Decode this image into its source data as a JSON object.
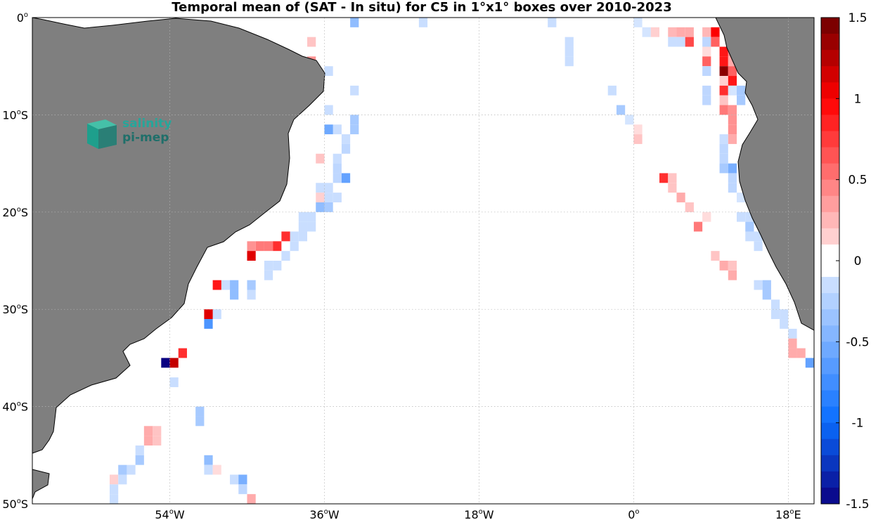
{
  "title": "Temporal mean of (SAT - In situ) for C5 in 1°x1° boxes over 2010-2023",
  "logo": {
    "line1": "salinity",
    "line2": "pi-mep"
  },
  "colors": {
    "land": "#7f7f7f",
    "grid": "#b4b4b4",
    "frame": "#000000"
  },
  "map": {
    "lon_range": [
      -70,
      21
    ],
    "lat_range": [
      -50,
      0
    ],
    "x_ticks": [
      {
        "lon": -54,
        "deg": "54",
        "hemi": "W"
      },
      {
        "lon": -36,
        "deg": "36",
        "hemi": "W"
      },
      {
        "lon": -18,
        "deg": "18",
        "hemi": "W"
      },
      {
        "lon": 0,
        "deg": "0",
        "hemi": ""
      },
      {
        "lon": 18,
        "deg": "18",
        "hemi": "E"
      }
    ],
    "y_ticks": [
      {
        "lat": 0,
        "deg": "0",
        "hemi": ""
      },
      {
        "lat": -10,
        "deg": "10",
        "hemi": "S"
      },
      {
        "lat": -20,
        "deg": "20",
        "hemi": "S"
      },
      {
        "lat": -30,
        "deg": "30",
        "hemi": "S"
      },
      {
        "lat": -40,
        "deg": "40",
        "hemi": "S"
      },
      {
        "lat": -50,
        "deg": "50",
        "hemi": "S"
      }
    ]
  },
  "colorbar": {
    "range": [
      -1.5,
      1.5
    ],
    "steps": 30,
    "ticks": [
      {
        "value": 1.5,
        "label": "1.5"
      },
      {
        "value": 1,
        "label": "1"
      },
      {
        "value": 0.5,
        "label": "0.5"
      },
      {
        "value": 0,
        "label": "0"
      },
      {
        "value": -0.5,
        "label": "-0.5"
      },
      {
        "value": -1,
        "label": "-1"
      },
      {
        "value": -1.5,
        "label": "-1.5"
      }
    ]
  },
  "chart_data": {
    "type": "heatmap",
    "title": "Temporal mean of (SAT - In situ) for C5 in 1°x1° boxes over 2010-2023",
    "x_unit": "longitude (deg)",
    "y_unit": "latitude (deg)",
    "value_range": [
      -1.5,
      1.5
    ],
    "cells": [
      [
        -33,
        -1,
        -0.4
      ],
      [
        -25,
        -1,
        -0.15
      ],
      [
        -10,
        -1,
        -0.15
      ],
      [
        0,
        -1,
        -0.1
      ],
      [
        1,
        -2,
        -0.1
      ],
      [
        2,
        -2,
        0.15
      ],
      [
        4,
        -2,
        0.25
      ],
      [
        5,
        -2,
        0.3
      ],
      [
        6,
        -2,
        0.3
      ],
      [
        8,
        -2,
        0.25
      ],
      [
        9,
        -2,
        1.0
      ],
      [
        -38,
        -3,
        0.2
      ],
      [
        -8,
        -3,
        -0.15
      ],
      [
        4,
        -3,
        -0.15
      ],
      [
        5,
        -3,
        -0.15
      ],
      [
        6,
        -3,
        0.7
      ],
      [
        8,
        -3,
        -0.2
      ],
      [
        9,
        -3,
        0.6
      ],
      [
        -8,
        -4,
        -0.15
      ],
      [
        8,
        -4,
        0.1
      ],
      [
        10,
        -4,
        0.9
      ],
      [
        11,
        -4,
        0.4
      ],
      [
        -8,
        -5,
        -0.15
      ],
      [
        -38,
        -5,
        0.4
      ],
      [
        8,
        -5,
        0.6
      ],
      [
        10,
        -5,
        0.9
      ],
      [
        11,
        -5,
        0.3
      ],
      [
        12,
        -5,
        -0.4
      ],
      [
        -36,
        -6,
        -0.15
      ],
      [
        8,
        -6,
        -0.2
      ],
      [
        10,
        -6,
        1.4
      ],
      [
        11,
        -6,
        0.6
      ],
      [
        10,
        -7,
        0.15
      ],
      [
        11,
        -7,
        0.9
      ],
      [
        -33,
        -8,
        -0.15
      ],
      [
        -3,
        -8,
        -0.15
      ],
      [
        8,
        -8,
        -0.2
      ],
      [
        10,
        -8,
        0.8
      ],
      [
        11,
        -8,
        -0.1
      ],
      [
        12,
        -8,
        -0.3
      ],
      [
        8,
        -9,
        -0.2
      ],
      [
        10,
        -9,
        0.2
      ],
      [
        12,
        -9,
        -0.3
      ],
      [
        -36,
        -10,
        -0.15
      ],
      [
        -2,
        -10,
        -0.3
      ],
      [
        10,
        -10,
        0.5
      ],
      [
        11,
        -10,
        0.4
      ],
      [
        -33,
        -11,
        -0.3
      ],
      [
        -1,
        -11,
        -0.1
      ],
      [
        11,
        -11,
        0.4
      ],
      [
        -33,
        -12,
        -0.3
      ],
      [
        -35,
        -12,
        -0.15
      ],
      [
        -36,
        -12,
        -0.55
      ],
      [
        0,
        -12,
        0.1
      ],
      [
        11,
        -12,
        0.4
      ],
      [
        -34,
        -13,
        -0.15
      ],
      [
        0,
        -13,
        0.2
      ],
      [
        10,
        -13,
        -0.15
      ],
      [
        11,
        -13,
        0.3
      ],
      [
        -34,
        -14,
        -0.2
      ],
      [
        10,
        -14,
        -0.2
      ],
      [
        -37,
        -15,
        0.2
      ],
      [
        -35,
        -15,
        -0.15
      ],
      [
        10,
        -15,
        -0.2
      ],
      [
        -35,
        -16,
        -0.2
      ],
      [
        10,
        -16,
        -0.3
      ],
      [
        11,
        -16,
        -0.5
      ],
      [
        -35,
        -17,
        -0.2
      ],
      [
        -34,
        -17,
        -0.6
      ],
      [
        3,
        -17,
        0.8
      ],
      [
        4,
        -17,
        0.2
      ],
      [
        11,
        -17,
        -0.2
      ],
      [
        -36,
        -18,
        -0.15
      ],
      [
        -37,
        -18,
        -0.15
      ],
      [
        4,
        -18,
        0.2
      ],
      [
        11,
        -18,
        -0.2
      ],
      [
        -36,
        -19,
        -0.15
      ],
      [
        -37,
        -19,
        0.15
      ],
      [
        -35,
        -19,
        -0.15
      ],
      [
        5,
        -19,
        0.3
      ],
      [
        12,
        -19,
        -0.1
      ],
      [
        -36,
        -20,
        -0.3
      ],
      [
        -37,
        -20,
        -0.4
      ],
      [
        6,
        -20,
        0.2
      ],
      [
        -38,
        -21,
        -0.15
      ],
      [
        -39,
        -21,
        -0.15
      ],
      [
        8,
        -21,
        0.1
      ],
      [
        12,
        -21,
        -0.15
      ],
      [
        13,
        -21,
        -0.15
      ],
      [
        -38,
        -22,
        -0.15
      ],
      [
        -39,
        -22,
        -0.15
      ],
      [
        7,
        -22,
        0.5
      ],
      [
        13,
        -22,
        -0.3
      ],
      [
        -39,
        -23,
        -0.15
      ],
      [
        -40,
        -23,
        -0.15
      ],
      [
        -41,
        -23,
        0.8
      ],
      [
        13,
        -23,
        -0.15
      ],
      [
        14,
        -23,
        -0.15
      ],
      [
        -40,
        -24,
        -0.15
      ],
      [
        -42,
        -24,
        0.8
      ],
      [
        -43,
        -24,
        0.5
      ],
      [
        -44,
        -24,
        0.5
      ],
      [
        -45,
        -24,
        0.4
      ],
      [
        14,
        -24,
        -0.15
      ],
      [
        -41,
        -25,
        -0.15
      ],
      [
        -45,
        -25,
        1.1
      ],
      [
        9,
        -25,
        0.2
      ],
      [
        -42,
        -26,
        -0.15
      ],
      [
        -43,
        -26,
        -0.15
      ],
      [
        11,
        -26,
        0.2
      ],
      [
        -43,
        -27,
        -0.15
      ],
      [
        10,
        -26,
        0.3
      ],
      [
        11,
        -27,
        0.3
      ],
      [
        -48,
        -28,
        -0.15
      ],
      [
        -47,
        -28,
        -0.4
      ],
      [
        -45,
        -28,
        -0.3
      ],
      [
        -49,
        -28,
        0.9
      ],
      [
        14,
        -28,
        -0.15
      ],
      [
        15,
        -28,
        -0.3
      ],
      [
        -47,
        -29,
        -0.4
      ],
      [
        -45,
        -29,
        -0.15
      ],
      [
        15,
        -29,
        -0.3
      ],
      [
        16,
        -30,
        -0.15
      ],
      [
        -49,
        -31,
        -0.15
      ],
      [
        -50,
        -31,
        1.1
      ],
      [
        16,
        -31,
        -0.15
      ],
      [
        17,
        -31,
        -0.15
      ],
      [
        -50,
        -32,
        -0.7
      ],
      [
        17,
        -32,
        -0.15
      ],
      [
        18,
        -33,
        -0.15
      ],
      [
        18,
        -34,
        0.3
      ],
      [
        -53,
        -35,
        0.8
      ],
      [
        18,
        -35,
        0.3
      ],
      [
        19,
        -35,
        0.3
      ],
      [
        -55,
        -36,
        -1.5
      ],
      [
        -54,
        -36,
        1.2
      ],
      [
        20,
        -36,
        -0.6
      ],
      [
        -54,
        -38,
        -0.15
      ],
      [
        -51,
        -41,
        -0.3
      ],
      [
        -51,
        -42,
        -0.3
      ],
      [
        -56,
        -43,
        0.2
      ],
      [
        -57,
        -43,
        0.3
      ],
      [
        -56,
        -44,
        0.2
      ],
      [
        -57,
        -44,
        0.3
      ],
      [
        -58,
        -45,
        -0.15
      ],
      [
        -58,
        -46,
        -0.3
      ],
      [
        -50,
        -46,
        -0.4
      ],
      [
        -60,
        -47,
        -0.3
      ],
      [
        -59,
        -47,
        -0.15
      ],
      [
        -50,
        -47,
        -0.15
      ],
      [
        -49,
        -47,
        0.1
      ],
      [
        -61,
        -48,
        0.15
      ],
      [
        -60,
        -48,
        -0.15
      ],
      [
        -47,
        -48,
        -0.15
      ],
      [
        -46,
        -48,
        -0.5
      ],
      [
        -61,
        -49,
        -0.15
      ],
      [
        -46,
        -49,
        -0.2
      ],
      [
        -61,
        -50,
        -0.15
      ],
      [
        -45,
        -50,
        0.3
      ],
      [
        -44,
        -51,
        0.6
      ],
      [
        -43,
        -51,
        0.3
      ]
    ]
  }
}
